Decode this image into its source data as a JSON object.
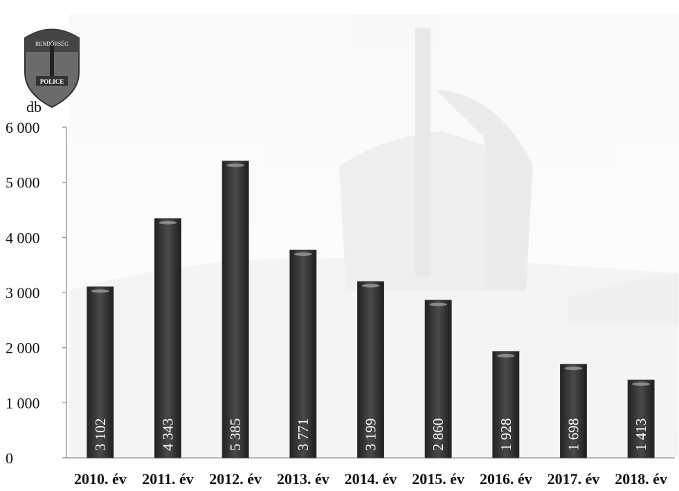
{
  "chart_data": {
    "type": "bar",
    "unit_label": "db",
    "categories": [
      "2010. év",
      "2011. év",
      "2012. év",
      "2013. év",
      "2014. év",
      "2015. év",
      "2016. év",
      "2017. év",
      "2018. év"
    ],
    "values": [
      3102,
      4343,
      5385,
      3771,
      3199,
      2860,
      1928,
      1698,
      1413
    ],
    "value_labels": [
      "3 102",
      "4 343",
      "5 385",
      "3 771",
      "3 199",
      "2 860",
      "1 928",
      "1 698",
      "1 413"
    ],
    "y_ticks": [
      0,
      1000,
      2000,
      3000,
      4000,
      5000,
      6000
    ],
    "y_tick_labels": [
      "0",
      "1 000",
      "2 000",
      "3 000",
      "4 000",
      "5 000",
      "6 000"
    ],
    "ylim": [
      0,
      6000
    ],
    "grid": false,
    "legend": "none",
    "bar_color": "#3a3a3a"
  },
  "logo": {
    "icon": "police-shield-icon",
    "text_top": "RENDŐRSÉG",
    "text_bottom": "POLICE"
  }
}
